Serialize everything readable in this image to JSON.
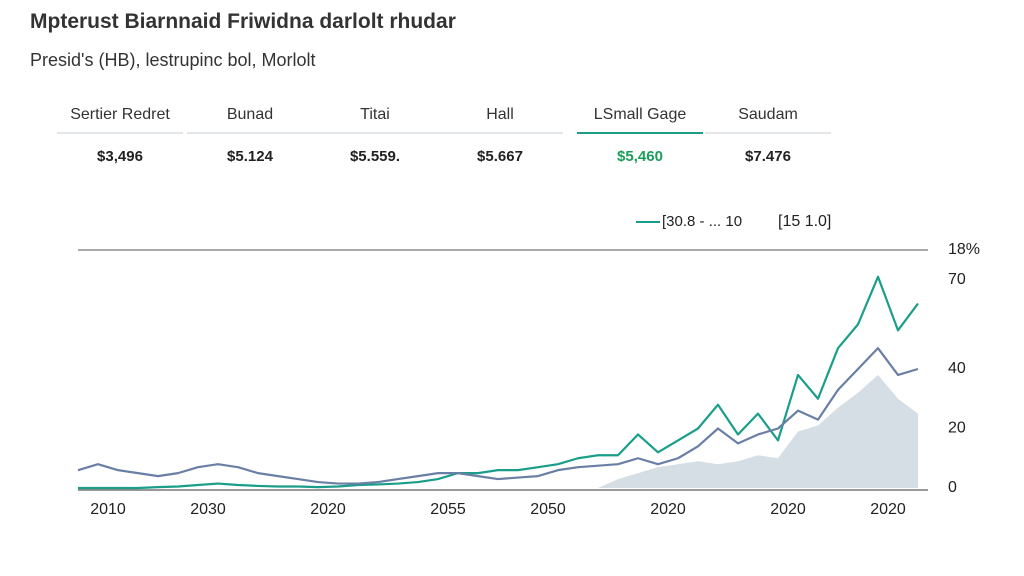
{
  "chart_data": {
    "type": "line",
    "title": "Mpterust Biarnnaid Friwidna darlolt rhudar",
    "subtitle": "Presid's (HB), lestrupinc bol, Morlolt",
    "tabs": [
      {
        "name": "Sertier Redret",
        "value": "$3,496"
      },
      {
        "name": "Bunad",
        "value": "$5.124"
      },
      {
        "name": "Titai",
        "value": "$5.559."
      },
      {
        "name": "Hall",
        "value": "$5.667"
      },
      {
        "name": "LSmall Gage",
        "value": "$5,460",
        "active": true
      },
      {
        "name": "Saudam",
        "value": "$7.476"
      }
    ],
    "legend_note": "[15 1.0]",
    "axis_top_label": "18%",
    "categories": [
      null,
      "2010",
      null,
      null,
      null,
      null,
      "2030",
      null,
      null,
      null,
      null,
      null,
      "2020",
      null,
      null,
      null,
      null,
      null,
      "2055",
      null,
      null,
      null,
      null,
      "2050",
      null,
      null,
      null,
      null,
      null,
      "2020",
      null,
      null,
      null,
      null,
      null,
      "2020",
      null,
      null,
      null,
      null,
      "2020",
      null,
      null
    ],
    "ylim": [
      0,
      80
    ],
    "yticks": [
      0,
      20,
      40,
      70
    ],
    "series": [
      {
        "name": "[30.8 - ... 10",
        "color": "#1a9e8a",
        "values": [
          0,
          0,
          0,
          0,
          0.3,
          0.5,
          1,
          1.5,
          1,
          0.7,
          0.5,
          0.5,
          0.3,
          0.5,
          1,
          1.2,
          1.5,
          2,
          3,
          5,
          5,
          6,
          6,
          7,
          8,
          10,
          11,
          11,
          18,
          12,
          16,
          20,
          28,
          18,
          25,
          16,
          38,
          30,
          47,
          55,
          71,
          53,
          62
        ]
      },
      {
        "color": "#6a7fa5",
        "values": [
          6,
          8,
          6,
          5,
          4,
          5,
          7,
          8,
          7,
          5,
          4,
          3,
          2,
          1.5,
          1.5,
          2,
          3,
          4,
          5,
          5,
          4,
          3,
          3.5,
          4,
          6,
          7,
          7.5,
          8,
          10,
          8,
          10,
          14,
          20,
          15,
          18,
          20,
          26,
          23,
          33,
          40,
          47,
          38,
          40
        ]
      },
      {
        "color": "#d5dee4",
        "area": true,
        "values": [
          null,
          null,
          null,
          null,
          null,
          null,
          null,
          null,
          null,
          null,
          null,
          null,
          null,
          null,
          null,
          null,
          null,
          null,
          null,
          null,
          null,
          null,
          null,
          null,
          null,
          null,
          0,
          3,
          5,
          7,
          8,
          9,
          8,
          9,
          11,
          10,
          19,
          21,
          27,
          32,
          38,
          30,
          25
        ]
      }
    ]
  }
}
